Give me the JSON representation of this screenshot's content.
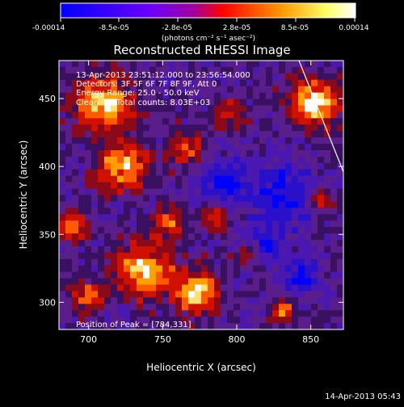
{
  "colorbar": {
    "ticks": [
      "-0.00014",
      "-8.5e-05",
      "-2.8e-05",
      "2.8e-05",
      "8.5e-05",
      "0.00014"
    ],
    "tick_values": [
      -0.00014,
      -8.5e-05,
      -2.8e-05,
      2.8e-05,
      8.5e-05,
      0.00014
    ],
    "units": "(photons cm⁻² s⁻¹ asec⁻²)",
    "colors": [
      "#0000ff",
      "#6a00ff",
      "#b000b0",
      "#ff0000",
      "#ff9900",
      "#ffff66",
      "#ffffff"
    ]
  },
  "annotations": {
    "line1": "13-Apr-2013 23:51:12.000 to 23:56:54.000",
    "line2": "Detectors: 3F 5F 6F 7F 8F 9F, Att 0",
    "line3": "Energy Range: 25.0 - 50.0 keV",
    "line4_method": "Clean",
    "line4_counts": "Total counts: 8.03E+03",
    "peak": "Position of Peak = [784,331]"
  },
  "footer": {
    "timestamp": "14-Apr-2013 05:43"
  },
  "chart_data": {
    "type": "heatmap",
    "title": "Reconstructed RHESSI Image",
    "xlabel": "Heliocentric X (arcsec)",
    "ylabel": "Heliocentric Y (arcsec)",
    "xlim": [
      680,
      872
    ],
    "ylim": [
      280,
      478
    ],
    "xticks": [
      700,
      750,
      800,
      850
    ],
    "yticks": [
      300,
      350,
      400,
      450
    ],
    "value_range": [
      -0.00014,
      0.00014
    ],
    "peak_position": [
      784,
      331
    ],
    "limb_line": [
      [
        842,
        478
      ],
      [
        872,
        396
      ]
    ]
  }
}
